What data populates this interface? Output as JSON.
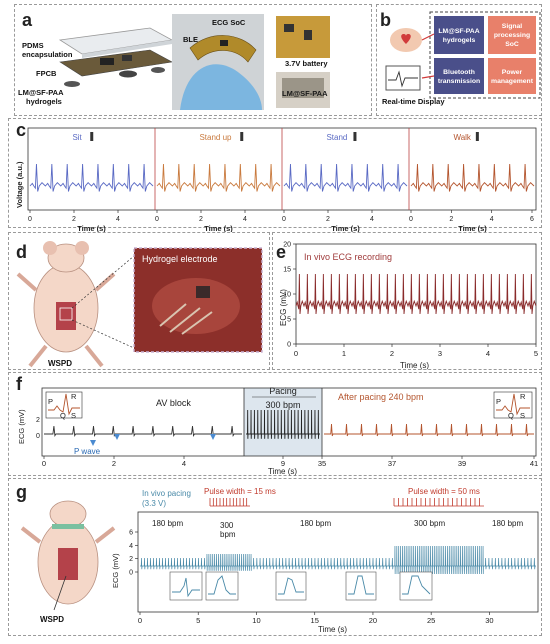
{
  "panels": {
    "a": {
      "letter": "a",
      "labels": {
        "pdms": "PDMS",
        "encap": "encapsulation",
        "fpcb": "FPCB",
        "hydro1": "LM@SF-PAA",
        "hydro2": "hydrogels",
        "ecg_soc": "ECG SoC",
        "ble": "BLE",
        "battery": "3.7V battery",
        "lm_label": "LM@SF-PAA"
      }
    },
    "b": {
      "letter": "b",
      "hydrogels": [
        "LM@SF-PAA",
        "hydrogels"
      ],
      "signal": [
        "Signal",
        "processing",
        "SoC"
      ],
      "bluetooth": [
        "Bluetooth",
        "transmission"
      ],
      "power": [
        "Power",
        "management"
      ],
      "display": "Real-time Display"
    },
    "c": {
      "letter": "c",
      "ylabel": "Voltage (a.u.)",
      "segments": [
        {
          "name": "Sit",
          "color": "#5a6ac4",
          "ticks": [
            "0",
            "2",
            "4"
          ],
          "xlabel": "Time (s)"
        },
        {
          "name": "Stand up",
          "color": "#c97a3e",
          "ticks": [
            "0",
            "2",
            "4"
          ],
          "xlabel": "Time (s)"
        },
        {
          "name": "Stand",
          "color": "#5a6ac4",
          "ticks": [
            "0",
            "2",
            "4"
          ],
          "xlabel": "Time (s)"
        },
        {
          "name": "Walk",
          "color": "#b4552e",
          "ticks": [
            "0",
            "2",
            "4",
            "6"
          ],
          "xlabel": "Time (s)"
        }
      ]
    },
    "d": {
      "letter": "d",
      "inset_label": "Hydrogel electrode",
      "device_label": "WSPD"
    },
    "e": {
      "letter": "e",
      "title": "In vivo ECG recording",
      "ylabel": "ECG (mV)",
      "xlabel": "Time (s)",
      "xticks": [
        "0",
        "1",
        "2",
        "3",
        "4",
        "5"
      ],
      "yticks": [
        "0",
        "5",
        "10",
        "15",
        "20"
      ]
    },
    "f": {
      "letter": "f",
      "ylabel": "ECG (mV)",
      "ytick_top": "2",
      "ytick_bottom": "0",
      "av_block": "AV block",
      "pacing": "Pacing",
      "pacing_rate": "300 bpm",
      "after": "After pacing 240 bpm",
      "p_wave": "P wave",
      "xlabel": "Time (s)",
      "xticks": [
        "0",
        "2",
        "4",
        "9",
        "35",
        "37",
        "39",
        "41"
      ],
      "pqrs": {
        "p": "P",
        "q": "Q",
        "r": "R",
        "s": "S"
      }
    },
    "g": {
      "letter": "g",
      "pacing_title": "In vivo pacing",
      "pacing_voltage": "(3.3 V)",
      "pulse15": "Pulse width = 15 ms",
      "pulse50": "Pulse width = 50 ms",
      "bpm180a": "180 bpm",
      "bpm300a": "300",
      "bpm_unit": "bpm",
      "bpm180b": "180 bpm",
      "bpm300b": "300 bpm",
      "bpm180c": "180 bpm",
      "ylabel": "ECG (mV)",
      "xlabel": "Time (s)",
      "xticks": [
        "0",
        "5",
        "10",
        "15",
        "20",
        "25",
        "30"
      ],
      "yticks": [
        "0",
        "2",
        "4",
        "6"
      ],
      "device_label": "WSPD"
    }
  },
  "colors": {
    "blue_trace": "#5a6ac4",
    "orange_trace": "#c97a3e",
    "red_trace": "#b4552e",
    "ecg_dark": "#8a2b2b",
    "pacing_red": "#c0392b",
    "g_trace": "#4a8aa8"
  }
}
